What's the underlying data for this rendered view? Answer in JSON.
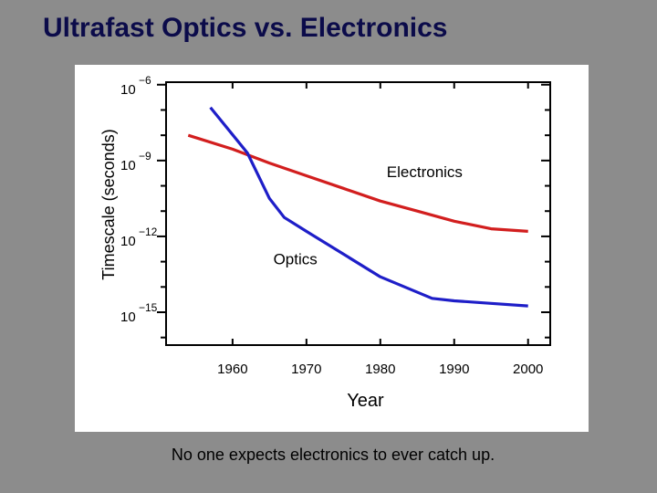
{
  "slide": {
    "title": "Ultrafast Optics vs. Electronics",
    "caption": "No one expects electronics to ever catch up."
  },
  "chart_data": {
    "type": "line",
    "title": "",
    "xlabel": "Year",
    "ylabel": "Timescale (seconds)",
    "xlim": [
      1951,
      2003
    ],
    "ylim": [
      -16.3,
      -5.9
    ],
    "y_scale": "log10",
    "x_ticks": [
      "1960",
      "1970",
      "1980",
      "1990",
      "2000"
    ],
    "y_ticks": [
      {
        "base": "10",
        "exp": "−6",
        "value": -6
      },
      {
        "base": "10",
        "exp": "−9",
        "value": -9
      },
      {
        "base": "10",
        "exp": "−12",
        "value": -12
      },
      {
        "base": "10",
        "exp": "−15",
        "value": -15
      }
    ],
    "grid": false,
    "legend": "none",
    "series": [
      {
        "name": "Electronics",
        "color": "#d21e1e",
        "x": [
          1954,
          1960,
          1965,
          1970,
          1975,
          1980,
          1985,
          1990,
          1995,
          2000
        ],
        "y": [
          -8.0,
          -8.55,
          -9.1,
          -9.6,
          -10.1,
          -10.6,
          -11.0,
          -11.4,
          -11.7,
          -11.8
        ]
      },
      {
        "name": "Optics",
        "color": "#1e1ec8",
        "x": [
          1957,
          1962,
          1965,
          1967,
          1970,
          1975,
          1980,
          1987,
          1990,
          1995,
          2000
        ],
        "y": [
          -6.9,
          -8.7,
          -10.5,
          -11.25,
          -11.8,
          -12.7,
          -13.6,
          -14.45,
          -14.55,
          -14.65,
          -14.75
        ]
      }
    ],
    "annotations": [
      {
        "text": "Electronics",
        "x": 1986,
        "y": -9.65
      },
      {
        "text": "Optics",
        "x": 1968.5,
        "y": -13.1
      }
    ]
  }
}
